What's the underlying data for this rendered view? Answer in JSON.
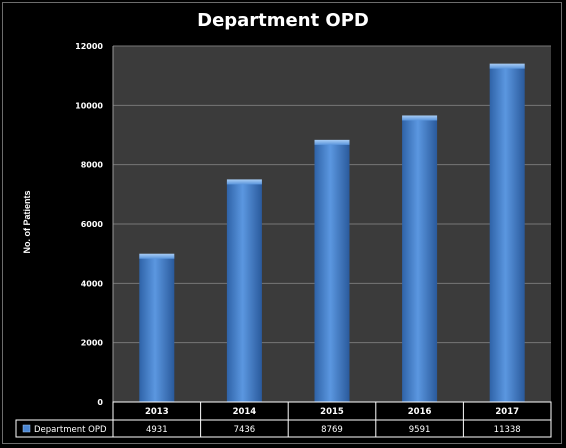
{
  "chart_data": {
    "type": "bar",
    "title": "Department OPD",
    "ylabel": "No. of Patients",
    "xlabel": "",
    "categories": [
      "2013",
      "2014",
      "2015",
      "2016",
      "2017"
    ],
    "series": [
      {
        "name": "Department OPD",
        "values": [
          4931,
          7436,
          8769,
          9591,
          11338
        ]
      }
    ],
    "ylim": [
      0,
      12000
    ],
    "yticks": [
      "0",
      "2000",
      "4000",
      "6000",
      "8000",
      "10000",
      "12000"
    ],
    "data_table": true,
    "grid": true,
    "bar_color": "#4a86d4",
    "plot_background": "#3b3b3b"
  }
}
